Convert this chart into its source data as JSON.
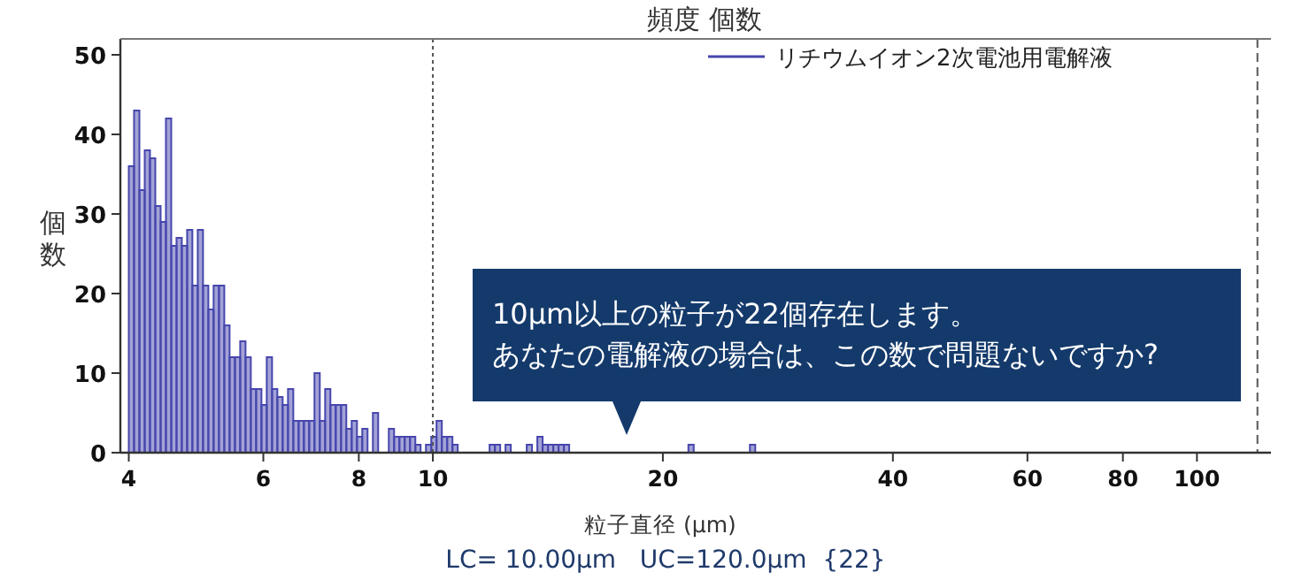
{
  "chart_data": {
    "type": "histogram",
    "title": "頻度 個数",
    "xlabel": "粒子直径 (µm)",
    "ylabel": "個数",
    "annotations": [
      "10µm以上の粒子が22個存在します。",
      "あなたの電解液の場合は、この数で問題ないですか?",
      "LC= 10.00µm   UC=120.0µm  {22}"
    ],
    "log": "x",
    "xlim": [
      3.9,
      125
    ],
    "xticks": [
      4,
      6,
      8,
      10,
      20,
      40,
      60,
      80,
      100
    ],
    "ylim": [
      0,
      52
    ],
    "yticks": [
      0,
      10,
      20,
      30,
      40,
      50
    ],
    "legend": "top right",
    "ref_lines": [
      {
        "axis": "x",
        "value": 10,
        "line_style": "dotted",
        "color": "#555555"
      },
      {
        "axis": "x",
        "value": 120,
        "line_style": "dashed",
        "color": "#555555"
      }
    ],
    "bins": [
      4.0,
      4.064,
      4.13,
      4.197,
      4.264,
      4.333,
      4.403,
      4.474,
      4.546,
      4.619,
      4.693,
      4.769,
      4.845,
      4.924,
      5.003,
      5.084,
      5.165,
      5.249,
      5.334,
      5.42,
      5.508,
      5.596,
      5.687,
      5.778,
      5.871,
      5.966,
      6.062,
      6.16,
      6.259,
      6.36,
      6.463,
      6.567,
      6.673,
      6.78,
      6.889,
      7.0,
      7.113,
      7.228,
      7.344,
      7.463,
      7.583,
      7.705,
      7.83,
      7.956,
      8.084,
      8.214,
      8.347,
      8.481,
      8.757,
      8.898,
      9.041,
      9.187,
      9.335,
      9.486,
      9.638,
      9.794,
      9.952,
      10.112,
      10.275,
      10.441,
      10.609,
      10.78,
      11.865,
      12.057,
      12.251,
      12.448,
      12.649,
      13.27,
      13.484,
      13.701,
      13.922,
      14.147,
      14.375,
      14.606,
      14.842,
      15.081,
      21.6,
      21.95,
      26.0,
      26.42
    ],
    "series": [
      {
        "name": "リチウムイオン2次電池用電解液",
        "color": "#4646ad",
        "values": [
          36,
          43,
          33,
          38,
          37,
          31,
          29,
          42,
          26,
          27,
          26,
          28,
          21,
          28,
          21,
          18,
          21,
          21,
          16,
          12,
          12,
          14,
          12,
          8,
          8,
          6,
          12,
          8,
          7,
          6,
          8,
          4,
          4,
          4,
          4,
          10,
          4,
          8,
          6,
          6,
          6,
          3,
          4,
          2,
          3,
          0,
          5,
          0,
          3,
          2,
          2,
          2,
          2,
          1,
          0,
          1,
          2,
          4,
          2,
          2,
          1,
          0,
          1,
          1,
          0,
          1,
          0,
          1,
          0,
          2,
          1,
          1,
          1,
          1,
          1,
          0,
          1,
          0,
          1
        ]
      }
    ]
  }
}
